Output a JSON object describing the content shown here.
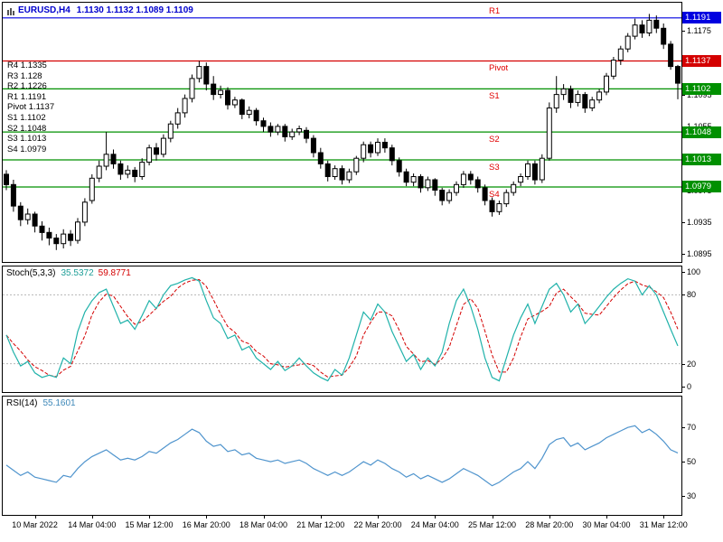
{
  "header": {
    "symbol_timeframe": "EURUSD,H4",
    "ohlc_text": "1.1130 1.1132 1.1089 1.1109"
  },
  "pivot_list": {
    "items": [
      "R4 1.1335",
      "R3 1.128",
      "R2 1.1226",
      "R1 1.1191",
      "Pivot 1.1137",
      "S1 1.1102",
      "S2 1.1048",
      "S3 1.1013",
      "S4 1.0979"
    ]
  },
  "colors": {
    "title_blue": "#0000cc",
    "level_green": "#009000",
    "pivot_red": "#d40000",
    "r1_blue": "#0000e0",
    "level_label_red": "#e00000",
    "stoch_main": "#20b2aa",
    "stoch_signal": "#d40000",
    "rsi_line": "#4f94cd",
    "candle_color": "#000000",
    "dashed_level_gray": "#b8b8b8"
  },
  "chart_data": [
    {
      "type": "candlestick",
      "title": "EURUSD,H4",
      "current_bar": {
        "open": "1.1130",
        "high": "1.1132",
        "low": "1.1089",
        "close": "1.1109"
      },
      "y_min": 1.0885,
      "y_max": 1.121,
      "y_ticks": [
        "1.1175",
        "1.1135",
        "1.1095",
        "1.1055",
        "1.1015",
        "1.0975",
        "1.0935",
        "1.0895"
      ],
      "levels": [
        {
          "name": "R1",
          "price": 1.1191,
          "display": "1.1191",
          "line": "#0000e0",
          "label_above": true
        },
        {
          "name": "Pivot",
          "price": 1.1137,
          "display": "1.1137",
          "line": "#d40000",
          "label_above": false
        },
        {
          "name": "S1",
          "price": 1.1102,
          "display": "1.1102",
          "line": "#009000",
          "label_above": false
        },
        {
          "name": "S2",
          "price": 1.1048,
          "display": "1.1048",
          "line": "#009000",
          "label_above": false
        },
        {
          "name": "S3",
          "price": 1.1013,
          "display": "1.1013",
          "line": "#009000",
          "label_above": false
        },
        {
          "name": "S4",
          "price": 1.0979,
          "display": "1.0979",
          "line": "#009000",
          "label_above": false
        }
      ],
      "x_labels": [
        {
          "i": 4,
          "text": "10 Mar 2022"
        },
        {
          "i": 12,
          "text": "14 Mar 04:00"
        },
        {
          "i": 20,
          "text": "15 Mar 12:00"
        },
        {
          "i": 28,
          "text": "16 Mar 20:00"
        },
        {
          "i": 36,
          "text": "18 Mar 04:00"
        },
        {
          "i": 44,
          "text": "21 Mar 12:00"
        },
        {
          "i": 52,
          "text": "22 Mar 20:00"
        },
        {
          "i": 60,
          "text": "24 Mar 04:00"
        },
        {
          "i": 68,
          "text": "25 Mar 12:00"
        },
        {
          "i": 76,
          "text": "28 Mar 20:00"
        },
        {
          "i": 84,
          "text": "30 Mar 04:00"
        },
        {
          "i": 92,
          "text": "31 Mar 12:00"
        }
      ],
      "candles": [
        [
          1.0995,
          1.1,
          1.0975,
          1.0982
        ],
        [
          1.0982,
          1.0988,
          1.0948,
          1.0955
        ],
        [
          1.0955,
          1.096,
          1.093,
          1.0938
        ],
        [
          1.0938,
          1.0952,
          1.0932,
          1.0945
        ],
        [
          1.0945,
          1.0948,
          1.0922,
          1.093
        ],
        [
          1.093,
          1.0936,
          1.0912,
          1.0922
        ],
        [
          1.0922,
          1.0928,
          1.0906,
          1.0915
        ],
        [
          1.0915,
          1.092,
          1.09,
          1.0908
        ],
        [
          1.0908,
          1.0926,
          1.0902,
          1.092
        ],
        [
          1.092,
          1.0925,
          1.0905,
          1.0912
        ],
        [
          1.0912,
          1.094,
          1.0908,
          1.0935
        ],
        [
          1.0935,
          1.0965,
          1.093,
          1.096
        ],
        [
          1.0962,
          1.0995,
          1.0958,
          1.099
        ],
        [
          1.099,
          1.1012,
          1.0985,
          1.1005
        ],
        [
          1.1005,
          1.1048,
          1.1,
          1.102
        ],
        [
          1.102,
          1.1026,
          1.1002,
          1.1008
        ],
        [
          1.1008,
          1.1012,
          1.0988,
          1.0995
        ],
        [
          1.0995,
          1.1006,
          1.099,
          1.1
        ],
        [
          1.1,
          1.1004,
          1.0985,
          1.0992
        ],
        [
          1.0992,
          1.1015,
          1.0988,
          1.101
        ],
        [
          1.101,
          1.1032,
          1.1006,
          1.1028
        ],
        [
          1.1028,
          1.1034,
          1.1012,
          1.102
        ],
        [
          1.102,
          1.1045,
          1.1016,
          1.104
        ],
        [
          1.104,
          1.1062,
          1.1035,
          1.1058
        ],
        [
          1.1058,
          1.1078,
          1.1052,
          1.1072
        ],
        [
          1.1072,
          1.1095,
          1.1066,
          1.109
        ],
        [
          1.109,
          1.112,
          1.1085,
          1.1115
        ],
        [
          1.1115,
          1.1137,
          1.111,
          1.113
        ],
        [
          1.113,
          1.1135,
          1.11,
          1.1108
        ],
        [
          1.1108,
          1.1118,
          1.1088,
          1.1095
        ],
        [
          1.1095,
          1.1106,
          1.109,
          1.11
        ],
        [
          1.11,
          1.1104,
          1.1076,
          1.1082
        ],
        [
          1.1082,
          1.1092,
          1.1078,
          1.1088
        ],
        [
          1.1088,
          1.109,
          1.1064,
          1.107
        ],
        [
          1.107,
          1.108,
          1.1065,
          1.1075
        ],
        [
          1.1075,
          1.1078,
          1.1056,
          1.1062
        ],
        [
          1.1062,
          1.1066,
          1.1048,
          1.1055
        ],
        [
          1.1055,
          1.106,
          1.1042,
          1.1048
        ],
        [
          1.1048,
          1.1058,
          1.1044,
          1.1055
        ],
        [
          1.1055,
          1.1058,
          1.1036,
          1.1042
        ],
        [
          1.1042,
          1.1052,
          1.1038,
          1.1048
        ],
        [
          1.1048,
          1.1056,
          1.1044,
          1.1052
        ],
        [
          1.105,
          1.1054,
          1.1034,
          1.104
        ],
        [
          1.104,
          1.1044,
          1.1016,
          1.1022
        ],
        [
          1.1022,
          1.1028,
          1.1002,
          1.1008
        ],
        [
          1.1008,
          1.1012,
          1.0986,
          1.0992
        ],
        [
          1.0992,
          1.1006,
          1.0988,
          1.1002
        ],
        [
          1.1002,
          1.1006,
          1.0982,
          1.0988
        ],
        [
          1.0988,
          1.1002,
          1.0984,
          1.0998
        ],
        [
          1.0998,
          1.1018,
          1.0994,
          1.1015
        ],
        [
          1.1015,
          1.1036,
          1.101,
          1.1032
        ],
        [
          1.1032,
          1.1036,
          1.1016,
          1.1022
        ],
        [
          1.1022,
          1.104,
          1.1018,
          1.1035
        ],
        [
          1.1035,
          1.104,
          1.1022,
          1.1028
        ],
        [
          1.1028,
          1.1032,
          1.1006,
          1.1012
        ],
        [
          1.1012,
          1.1016,
          1.0992,
          1.0998
        ],
        [
          1.0998,
          1.1002,
          1.098,
          1.0985
        ],
        [
          1.0985,
          1.0996,
          1.098,
          1.0992
        ],
        [
          1.0992,
          1.0995,
          1.0972,
          1.0978
        ],
        [
          1.0978,
          1.0992,
          1.0974,
          1.0988
        ],
        [
          1.0988,
          1.099,
          1.0968,
          1.0975
        ],
        [
          1.0975,
          1.0978,
          1.0956,
          1.0962
        ],
        [
          1.0962,
          1.0976,
          1.0958,
          1.0972
        ],
        [
          1.0972,
          1.0986,
          1.0968,
          1.0982
        ],
        [
          1.0982,
          1.0999,
          1.0978,
          1.0995
        ],
        [
          1.0995,
          1.0999,
          1.0982,
          1.0988
        ],
        [
          1.0988,
          1.0992,
          1.0972,
          1.0978
        ],
        [
          1.0978,
          1.0982,
          1.0956,
          1.0962
        ],
        [
          1.0962,
          1.0966,
          1.0942,
          1.0948
        ],
        [
          1.0948,
          1.0962,
          1.0944,
          1.0958
        ],
        [
          1.0958,
          1.0976,
          1.0954,
          1.0972
        ],
        [
          1.0972,
          1.0986,
          1.0968,
          1.0982
        ],
        [
          1.0985,
          1.0996,
          1.098,
          1.0992
        ],
        [
          1.0992,
          1.1012,
          1.0988,
          1.1008
        ],
        [
          1.1008,
          1.1012,
          1.0982,
          1.0988
        ],
        [
          1.0988,
          1.102,
          1.0984,
          1.1015
        ],
        [
          1.1015,
          1.1085,
          1.1012,
          1.1078
        ],
        [
          1.1078,
          1.1118,
          1.1072,
          1.1095
        ],
        [
          1.1095,
          1.1108,
          1.1088,
          1.1102
        ],
        [
          1.1102,
          1.1106,
          1.1078,
          1.1085
        ],
        [
          1.1085,
          1.11,
          1.108,
          1.1095
        ],
        [
          1.1095,
          1.1098,
          1.1072,
          1.1078
        ],
        [
          1.1078,
          1.1092,
          1.1074,
          1.1088
        ],
        [
          1.1088,
          1.1102,
          1.1084,
          1.1098
        ],
        [
          1.1098,
          1.1122,
          1.1094,
          1.1118
        ],
        [
          1.1118,
          1.1142,
          1.1114,
          1.1138
        ],
        [
          1.1138,
          1.1156,
          1.1132,
          1.1152
        ],
        [
          1.1152,
          1.1172,
          1.1148,
          1.1168
        ],
        [
          1.1168,
          1.119,
          1.1164,
          1.1182
        ],
        [
          1.1182,
          1.1188,
          1.1166,
          1.1172
        ],
        [
          1.1172,
          1.1196,
          1.1168,
          1.1188
        ],
        [
          1.1188,
          1.1194,
          1.1172,
          1.1178
        ],
        [
          1.1178,
          1.1184,
          1.1152,
          1.1158
        ],
        [
          1.1158,
          1.1162,
          1.1126,
          1.113
        ],
        [
          1.113,
          1.1132,
          1.1089,
          1.1109
        ]
      ]
    },
    {
      "type": "line",
      "name": "Stochastic",
      "label_name": "Stoch(5,3,3)",
      "value_main": "35.5372",
      "value_signal": "59.8771",
      "y_min": 0,
      "y_max": 100,
      "y_ticks": [
        100,
        80,
        20,
        0
      ],
      "level_lines": [
        80,
        20
      ],
      "main": [
        45,
        30,
        18,
        22,
        12,
        8,
        10,
        8,
        25,
        20,
        48,
        65,
        75,
        82,
        85,
        70,
        55,
        58,
        50,
        62,
        75,
        68,
        80,
        88,
        90,
        93,
        95,
        92,
        75,
        60,
        55,
        42,
        45,
        32,
        35,
        25,
        20,
        15,
        22,
        14,
        18,
        25,
        18,
        12,
        8,
        5,
        15,
        10,
        25,
        45,
        65,
        58,
        72,
        65,
        48,
        35,
        22,
        28,
        15,
        25,
        18,
        30,
        55,
        75,
        85,
        70,
        50,
        25,
        8,
        5,
        25,
        45,
        60,
        72,
        55,
        70,
        85,
        90,
        80,
        65,
        72,
        55,
        62,
        70,
        78,
        85,
        90,
        94,
        92,
        80,
        88,
        80,
        65,
        50,
        35.54
      ]
    },
    {
      "type": "line",
      "name": "RSI",
      "label_name": "RSI(14)",
      "value": "55.1601",
      "y_min": 20,
      "y_max": 87,
      "y_ticks": [
        70,
        50,
        30
      ],
      "values": [
        48,
        45,
        42,
        44,
        41,
        40,
        39,
        38,
        42,
        41,
        46,
        50,
        53,
        55,
        57,
        54,
        51,
        52,
        51,
        53,
        56,
        55,
        58,
        61,
        63,
        66,
        69,
        67,
        62,
        59,
        60,
        56,
        57,
        54,
        55,
        52,
        51,
        50,
        51,
        49,
        50,
        51,
        49,
        46,
        44,
        42,
        44,
        42,
        44,
        47,
        50,
        48,
        51,
        49,
        46,
        44,
        41,
        43,
        40,
        42,
        40,
        38,
        40,
        43,
        46,
        44,
        42,
        39,
        36,
        38,
        41,
        44,
        46,
        50,
        46,
        52,
        60,
        63,
        64,
        59,
        61,
        57,
        59,
        61,
        64,
        66,
        68,
        70,
        71,
        67,
        69,
        66,
        62,
        57,
        55.16
      ]
    }
  ]
}
